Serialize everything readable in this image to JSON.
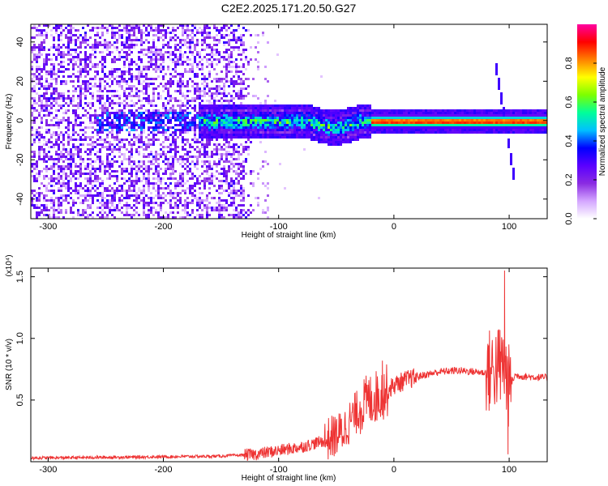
{
  "page": {
    "title": "C2E2.2025.171.20.50.G27"
  },
  "chart_data": [
    {
      "type": "heatmap",
      "title": "C2E2.2025.171.20.50.G27",
      "xlabel": "Height of straight line (km)",
      "ylabel": "Frequency (Hz)",
      "xlim": [
        -315,
        133
      ],
      "ylim": [
        -50,
        49
      ],
      "xticks": [
        -300,
        -200,
        -100,
        0,
        100
      ],
      "yticks": [
        -40,
        -20,
        0,
        20,
        40
      ],
      "colorbar": {
        "label": "Normalized spectral amplitude",
        "range": [
          0,
          1
        ],
        "ticks": [
          0,
          0.2,
          0.4,
          0.6,
          0.8
        ],
        "tick_labels": [
          "0.0",
          "0.2",
          "0.4",
          "0.6",
          "0.8"
        ],
        "colormap": [
          "#ffffff",
          "#d4a6ff",
          "#8a2be2",
          "#5a00ff",
          "#0000ff",
          "#00c0ff",
          "#00ff9a",
          "#7cff00",
          "#ffff00",
          "#ff8000",
          "#ff0000",
          "#ff00a0"
        ]
      },
      "features": {
        "noise_region_x": [
          -315,
          -125
        ],
        "track_x": [
          -170,
          133
        ],
        "track_freq_hz": 0,
        "strong_band_x": [
          -20,
          133
        ],
        "spike_x": 95,
        "spike_freq_range": [
          -27,
          30
        ]
      }
    },
    {
      "type": "line",
      "xlabel": "Height of straight line (km)",
      "ylabel": "SNR (10 * v/v)",
      "y_multiplier_label": "(x10⁴)",
      "xlim": [
        -315,
        133
      ],
      "ylim": [
        0,
        1.57
      ],
      "xticks": [
        -300,
        -200,
        -100,
        0,
        100
      ],
      "yticks": [
        0.5,
        1.0,
        1.5
      ],
      "ytick_labels": [
        "0.5",
        "1.0",
        "1.5"
      ],
      "series": [
        {
          "color": "#ee3333",
          "x": [
            -315,
            -250,
            -200,
            -150,
            -120,
            -100,
            -80,
            -60,
            -45,
            -35,
            -25,
            -15,
            -5,
            0,
            10,
            25,
            40,
            55,
            70,
            80,
            88,
            95,
            100,
            105,
            115,
            133
          ],
          "y": [
            0.03,
            0.035,
            0.04,
            0.045,
            0.06,
            0.09,
            0.12,
            0.17,
            0.24,
            0.37,
            0.48,
            0.53,
            0.58,
            0.62,
            0.66,
            0.7,
            0.73,
            0.74,
            0.73,
            0.72,
            0.76,
            0.78,
            0.6,
            0.7,
            0.69,
            0.68
          ],
          "spikes": [
            {
              "x": 96,
              "y": 1.55
            },
            {
              "x": 99,
              "y": 0.06
            },
            {
              "x": 92,
              "y": 1.0
            },
            {
              "x": -10,
              "y": 0.82
            }
          ]
        }
      ]
    }
  ]
}
